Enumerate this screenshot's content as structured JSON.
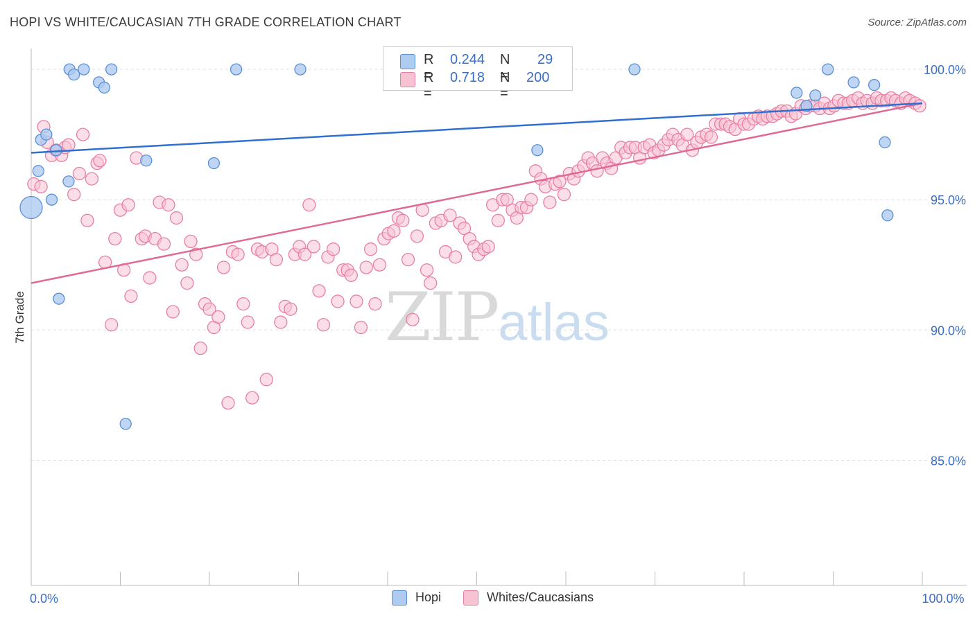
{
  "title": "HOPI VS WHITE/CAUCASIAN 7TH GRADE CORRELATION CHART",
  "source": "Source: ZipAtlas.com",
  "watermark": {
    "zip": "ZIP",
    "atlas": "atlas"
  },
  "legend": {
    "hopi": {
      "r_label": "R =",
      "r_value": "0.244",
      "n_label": "N =",
      "n_value": "29"
    },
    "whites": {
      "r_label": "R =",
      "r_value": "0.718",
      "n_label": "N =",
      "n_value": "200"
    }
  },
  "bottom_legend": {
    "hopi": "Hopi",
    "whites": "Whites/Caucasians"
  },
  "colors": {
    "hopi_fill": "#aecbf0",
    "hopi_stroke": "#5b8fd6",
    "hopi_line": "#2f6fd0",
    "whites_fill": "#f7c3d3",
    "whites_stroke": "#e87fa3",
    "whites_line": "#e06a97",
    "axis_label": "#3b6fc7",
    "grid": "#e0e0e0"
  },
  "chart_data": {
    "type": "scatter",
    "title": "HOPI VS WHITE/CAUCASIAN 7TH GRADE CORRELATION CHART",
    "xlabel": "",
    "ylabel": "7th Grade",
    "xlim": [
      0,
      100
    ],
    "ylim": [
      80.2,
      100.8
    ],
    "x_tick_labels": [
      {
        "value": 0,
        "label": "0.0%"
      },
      {
        "value": 100,
        "label": "100.0%"
      }
    ],
    "y_ticks": [
      {
        "value": 100,
        "label": "100.0%"
      },
      {
        "value": 95,
        "label": "95.0%"
      },
      {
        "value": 90,
        "label": "90.0%"
      },
      {
        "value": 85,
        "label": "85.0%"
      }
    ],
    "series": [
      {
        "name": "Hopi",
        "r": 0.244,
        "n": 29,
        "trend": {
          "x": [
            0,
            100
          ],
          "y": [
            96.8,
            98.7
          ]
        },
        "points": [
          [
            0,
            94.7,
            2
          ],
          [
            0.8,
            96.1,
            1
          ],
          [
            1.1,
            97.3,
            1
          ],
          [
            1.7,
            97.5,
            1
          ],
          [
            2.3,
            95.0,
            1
          ],
          [
            2.8,
            96.9,
            1
          ],
          [
            3.1,
            91.2,
            1
          ],
          [
            4.2,
            95.7,
            1
          ],
          [
            4.3,
            100.0,
            1
          ],
          [
            4.8,
            99.8,
            1
          ],
          [
            5.9,
            100.0,
            1
          ],
          [
            7.6,
            99.5,
            1
          ],
          [
            8.2,
            99.3,
            1
          ],
          [
            9.0,
            100.0,
            1
          ],
          [
            10.6,
            86.4,
            1
          ],
          [
            12.9,
            96.5,
            1
          ],
          [
            20.5,
            96.4,
            1
          ],
          [
            23.0,
            100.0,
            1
          ],
          [
            30.2,
            100.0,
            1
          ],
          [
            56.8,
            96.9,
            1
          ],
          [
            67.7,
            100.0,
            1
          ],
          [
            85.9,
            99.1,
            1
          ],
          [
            87.0,
            98.6,
            1
          ],
          [
            88.0,
            99.0,
            1
          ],
          [
            89.4,
            100.0,
            1
          ],
          [
            92.3,
            99.5,
            1
          ],
          [
            94.6,
            99.4,
            1
          ],
          [
            95.8,
            97.2,
            1
          ],
          [
            96.1,
            94.4,
            1
          ]
        ]
      },
      {
        "name": "Whites/Caucasians",
        "r": 0.718,
        "n": 200,
        "trend": {
          "x": [
            0,
            100
          ],
          "y": [
            91.8,
            98.7
          ]
        },
        "points": [
          [
            0.3,
            95.6
          ],
          [
            1.1,
            95.5
          ],
          [
            1.4,
            97.8
          ],
          [
            1.8,
            97.2
          ],
          [
            2.3,
            96.7
          ],
          [
            2.8,
            96.9
          ],
          [
            3.4,
            96.7
          ],
          [
            3.8,
            97.0
          ],
          [
            4.2,
            97.1
          ],
          [
            4.8,
            95.2
          ],
          [
            5.4,
            96.0
          ],
          [
            5.8,
            97.5
          ],
          [
            6.3,
            94.2
          ],
          [
            6.8,
            95.8
          ],
          [
            7.4,
            96.4
          ],
          [
            7.7,
            96.5
          ],
          [
            8.3,
            92.6
          ],
          [
            9.0,
            90.2
          ],
          [
            9.4,
            93.5
          ],
          [
            10.0,
            94.6
          ],
          [
            10.4,
            92.3
          ],
          [
            10.9,
            94.8
          ],
          [
            11.2,
            91.3
          ],
          [
            11.8,
            96.6
          ],
          [
            12.4,
            93.5
          ],
          [
            12.8,
            93.6
          ],
          [
            13.3,
            92.0
          ],
          [
            13.9,
            93.5
          ],
          [
            14.4,
            94.9
          ],
          [
            14.9,
            93.3
          ],
          [
            15.4,
            94.8
          ],
          [
            15.9,
            90.7
          ],
          [
            16.3,
            94.3
          ],
          [
            16.9,
            92.5
          ],
          [
            17.5,
            91.8
          ],
          [
            17.9,
            93.4
          ],
          [
            18.5,
            92.9
          ],
          [
            19.0,
            89.3
          ],
          [
            19.5,
            91.0
          ],
          [
            20.0,
            90.8
          ],
          [
            20.5,
            90.1
          ],
          [
            21.0,
            90.5
          ],
          [
            21.6,
            92.4
          ],
          [
            22.1,
            87.2
          ],
          [
            22.6,
            93.0
          ],
          [
            23.2,
            92.9
          ],
          [
            23.8,
            91.0
          ],
          [
            24.3,
            90.3
          ],
          [
            24.8,
            87.4
          ],
          [
            25.4,
            93.1
          ],
          [
            25.9,
            93.0
          ],
          [
            26.4,
            88.1
          ],
          [
            27.0,
            93.1
          ],
          [
            27.5,
            92.7
          ],
          [
            28.0,
            90.3
          ],
          [
            28.5,
            90.9
          ],
          [
            29.1,
            90.8
          ],
          [
            29.6,
            92.9
          ],
          [
            30.1,
            93.2
          ],
          [
            30.7,
            92.9
          ],
          [
            31.2,
            94.8
          ],
          [
            31.7,
            93.2
          ],
          [
            32.3,
            91.5
          ],
          [
            32.8,
            90.2
          ],
          [
            33.3,
            92.8
          ],
          [
            33.9,
            93.1
          ],
          [
            34.4,
            91.1
          ],
          [
            35.0,
            92.3
          ],
          [
            35.5,
            92.3
          ],
          [
            35.9,
            92.1
          ],
          [
            36.5,
            91.1
          ],
          [
            37.0,
            90.1
          ],
          [
            37.6,
            92.4
          ],
          [
            38.1,
            93.1
          ],
          [
            38.6,
            91.0
          ],
          [
            39.1,
            92.5
          ],
          [
            39.6,
            93.5
          ],
          [
            40.1,
            93.7
          ],
          [
            40.7,
            93.8
          ],
          [
            41.2,
            94.3
          ],
          [
            41.7,
            94.2
          ],
          [
            42.3,
            92.7
          ],
          [
            42.8,
            90.4
          ],
          [
            43.3,
            93.6
          ],
          [
            43.9,
            94.6
          ],
          [
            44.4,
            92.3
          ],
          [
            44.8,
            91.8
          ],
          [
            45.4,
            94.1
          ],
          [
            46.0,
            94.2
          ],
          [
            46.5,
            93.0
          ],
          [
            47.0,
            94.4
          ],
          [
            47.6,
            92.8
          ],
          [
            48.1,
            94.1
          ],
          [
            48.6,
            93.9
          ],
          [
            49.2,
            93.5
          ],
          [
            49.7,
            93.2
          ],
          [
            50.2,
            92.9
          ],
          [
            50.8,
            93.1
          ],
          [
            51.3,
            93.2
          ],
          [
            51.8,
            94.8
          ],
          [
            52.4,
            94.2
          ],
          [
            52.9,
            95.0
          ],
          [
            53.4,
            95.0
          ],
          [
            54.0,
            94.6
          ],
          [
            54.5,
            94.3
          ],
          [
            55.0,
            94.7
          ],
          [
            55.6,
            94.7
          ],
          [
            56.1,
            95.0
          ],
          [
            56.6,
            96.1
          ],
          [
            57.2,
            95.8
          ],
          [
            57.7,
            95.5
          ],
          [
            58.2,
            94.9
          ],
          [
            58.8,
            95.6
          ],
          [
            59.3,
            95.7
          ],
          [
            59.8,
            95.2
          ],
          [
            60.4,
            96.0
          ],
          [
            60.9,
            95.8
          ],
          [
            61.4,
            96.1
          ],
          [
            62.0,
            96.3
          ],
          [
            62.5,
            96.6
          ],
          [
            63.0,
            96.4
          ],
          [
            63.5,
            96.1
          ],
          [
            64.1,
            96.6
          ],
          [
            64.6,
            96.4
          ],
          [
            65.1,
            96.2
          ],
          [
            65.6,
            96.6
          ],
          [
            66.2,
            97.0
          ],
          [
            66.7,
            96.8
          ],
          [
            67.2,
            97.0
          ],
          [
            67.8,
            97.0
          ],
          [
            68.3,
            96.6
          ],
          [
            68.8,
            97.0
          ],
          [
            69.4,
            97.1
          ],
          [
            69.9,
            96.8
          ],
          [
            70.4,
            96.9
          ],
          [
            71.0,
            97.1
          ],
          [
            71.5,
            97.3
          ],
          [
            72.0,
            97.5
          ],
          [
            72.6,
            97.3
          ],
          [
            73.1,
            97.1
          ],
          [
            73.6,
            97.5
          ],
          [
            74.2,
            96.9
          ],
          [
            74.7,
            97.2
          ],
          [
            75.2,
            97.4
          ],
          [
            75.8,
            97.5
          ],
          [
            76.3,
            97.4
          ],
          [
            76.8,
            97.9
          ],
          [
            77.4,
            97.9
          ],
          [
            77.9,
            97.9
          ],
          [
            78.4,
            97.8
          ],
          [
            79.0,
            97.7
          ],
          [
            79.5,
            98.1
          ],
          [
            80.0,
            97.9
          ],
          [
            80.5,
            97.9
          ],
          [
            81.1,
            98.1
          ],
          [
            81.6,
            98.2
          ],
          [
            82.1,
            98.1
          ],
          [
            82.6,
            98.2
          ],
          [
            83.2,
            98.2
          ],
          [
            83.7,
            98.3
          ],
          [
            84.2,
            98.4
          ],
          [
            84.8,
            98.4
          ],
          [
            85.3,
            98.2
          ],
          [
            85.8,
            98.3
          ],
          [
            86.4,
            98.6
          ],
          [
            86.9,
            98.5
          ],
          [
            87.4,
            98.6
          ],
          [
            88.0,
            98.6
          ],
          [
            88.5,
            98.5
          ],
          [
            89.0,
            98.7
          ],
          [
            89.6,
            98.5
          ],
          [
            90.1,
            98.6
          ],
          [
            90.6,
            98.8
          ],
          [
            91.2,
            98.7
          ],
          [
            91.7,
            98.7
          ],
          [
            92.2,
            98.8
          ],
          [
            92.8,
            98.9
          ],
          [
            93.3,
            98.7
          ],
          [
            93.8,
            98.8
          ],
          [
            94.4,
            98.7
          ],
          [
            94.9,
            98.9
          ],
          [
            95.4,
            98.8
          ],
          [
            96.0,
            98.8
          ],
          [
            96.5,
            98.9
          ],
          [
            97.0,
            98.8
          ],
          [
            97.6,
            98.7
          ],
          [
            98.1,
            98.9
          ],
          [
            98.6,
            98.8
          ],
          [
            99.2,
            98.7
          ],
          [
            99.7,
            98.6
          ]
        ]
      }
    ]
  }
}
